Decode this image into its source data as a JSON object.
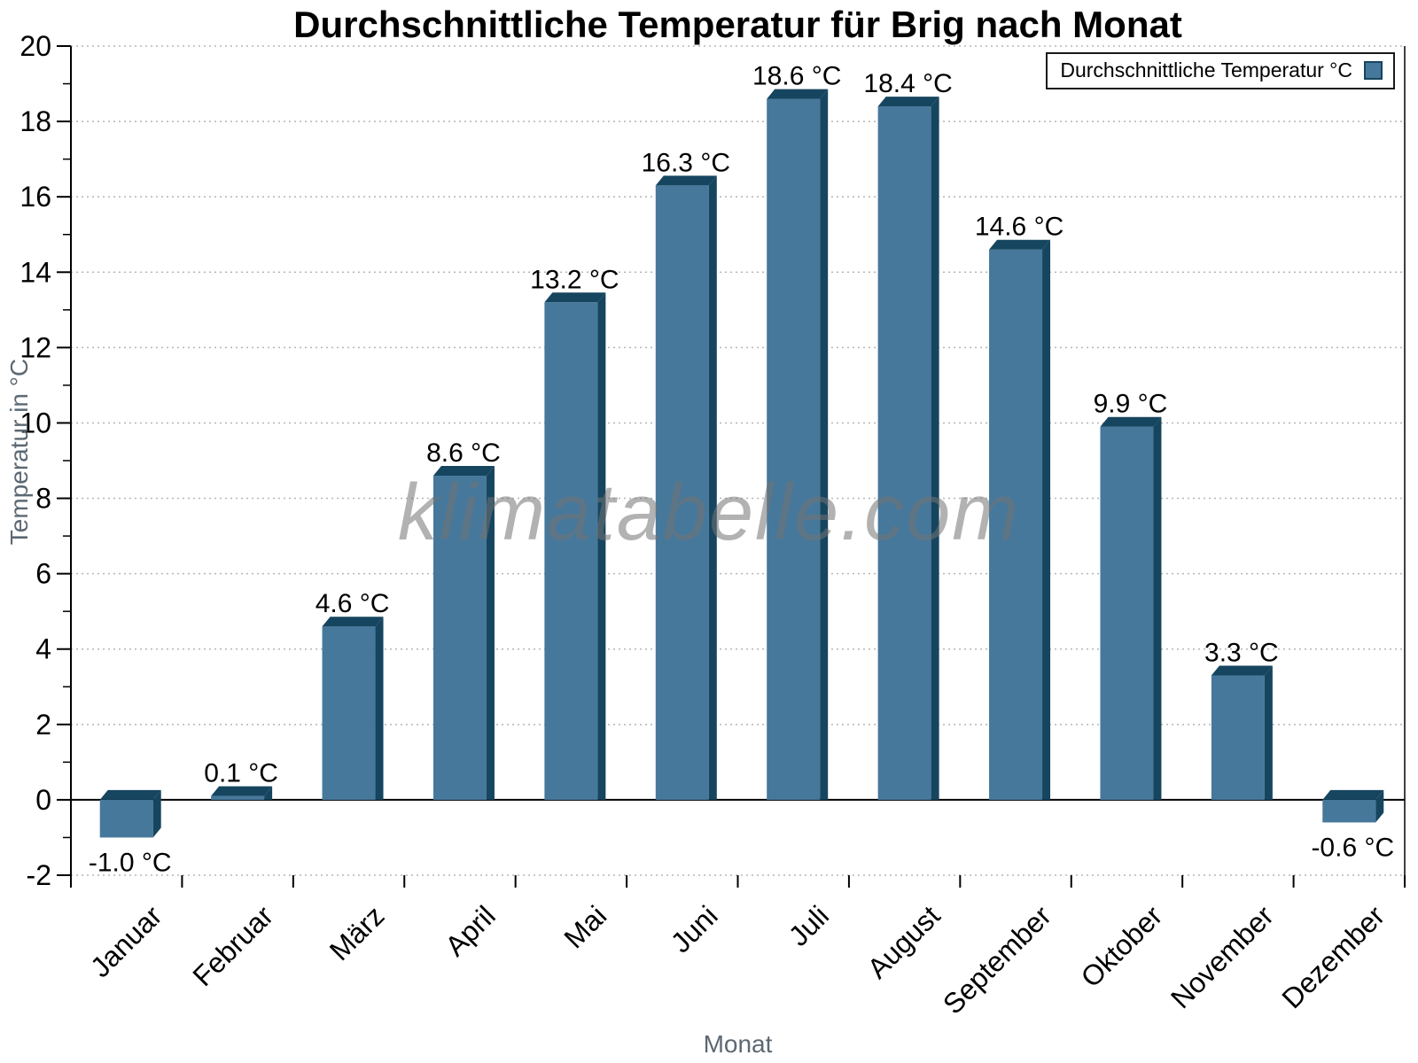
{
  "title": "Durchschnittliche Temperatur für Brig nach Monat",
  "watermark": "klimatabelle.com",
  "legend": {
    "label": "Durchschnittliche Temperatur °C",
    "position": "top-right"
  },
  "colors": {
    "bar_front": "#46789b",
    "bar_dark": "#16455f",
    "grid": "#b5b5b5",
    "axis": "#000000",
    "axis_title": "#5c6873",
    "tick_label": "#000000",
    "value_label": "#000000"
  },
  "chart_data": {
    "type": "bar",
    "title": "Durchschnittliche Temperatur für Brig nach Monat",
    "xlabel": "Monat",
    "ylabel": "Temperatur in °C",
    "categories": [
      "Januar",
      "Februar",
      "März",
      "April",
      "Mai",
      "Juni",
      "Juli",
      "August",
      "September",
      "Oktober",
      "November",
      "Dezember"
    ],
    "values": [
      -1.0,
      0.1,
      4.6,
      8.6,
      13.2,
      16.3,
      18.6,
      18.4,
      14.6,
      9.9,
      3.3,
      -0.6
    ],
    "value_labels": [
      "-1.0 °C",
      "0.1 °C",
      "4.6 °C",
      "8.6 °C",
      "13.2 °C",
      "16.3 °C",
      "18.6 °C",
      "18.4 °C",
      "14.6 °C",
      "9.9 °C",
      "3.3 °C",
      "-0.6 °C"
    ],
    "series_name": "Durchschnittliche Temperatur °C",
    "ylim": [
      -2,
      20
    ],
    "ytick_step": 2,
    "grid": true,
    "grid_style": "dotted",
    "legend_position": "top-right"
  }
}
